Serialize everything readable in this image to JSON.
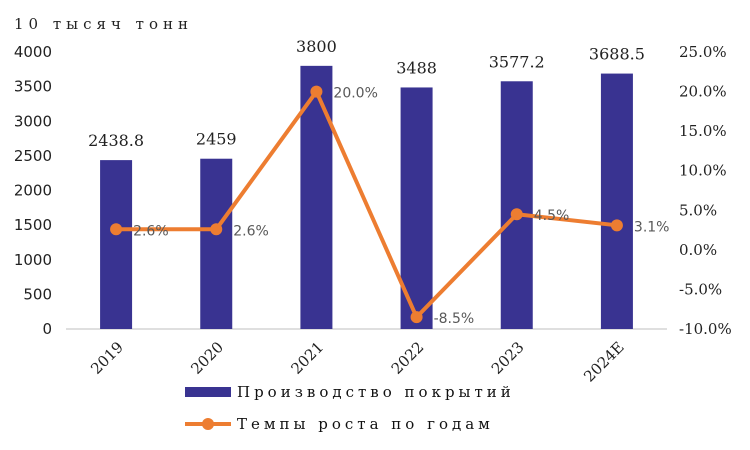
{
  "chart_data": {
    "type": "bar+line",
    "unit_label": "10 тысяч тонн",
    "categories": [
      "2019",
      "2020",
      "2021",
      "2022",
      "2023",
      "2024E"
    ],
    "series": [
      {
        "name": "Производство покрытий",
        "kind": "bar",
        "axis": "left",
        "values": [
          2438.8,
          2459,
          3800,
          3488,
          3577.2,
          3688.5
        ],
        "labels": [
          "2438.8",
          "2459",
          "3800",
          "3488",
          "3577.2",
          "3688.5"
        ],
        "color": "#393391"
      },
      {
        "name": "Темпы роста по годам",
        "kind": "line",
        "axis": "right",
        "values": [
          2.6,
          2.6,
          20.0,
          -8.5,
          4.5,
          3.1
        ],
        "labels": [
          "2.6%",
          "2.6%",
          "20.0%",
          "-8.5%",
          "4.5%",
          "3.1%"
        ],
        "color": "#ED7D31"
      }
    ],
    "left_axis": {
      "ylim": [
        0,
        4000
      ],
      "ticks": [
        "0",
        "500",
        "1000",
        "1500",
        "2000",
        "2500",
        "3000",
        "3500",
        "4000"
      ]
    },
    "right_axis": {
      "ylim": [
        -10,
        25
      ],
      "ticks": [
        "-10.0%",
        "-5.0%",
        "0.0%",
        "5.0%",
        "10.0%",
        "15.0%",
        "20.0%",
        "25.0%"
      ]
    },
    "grid": false,
    "legend_position": "bottom"
  }
}
